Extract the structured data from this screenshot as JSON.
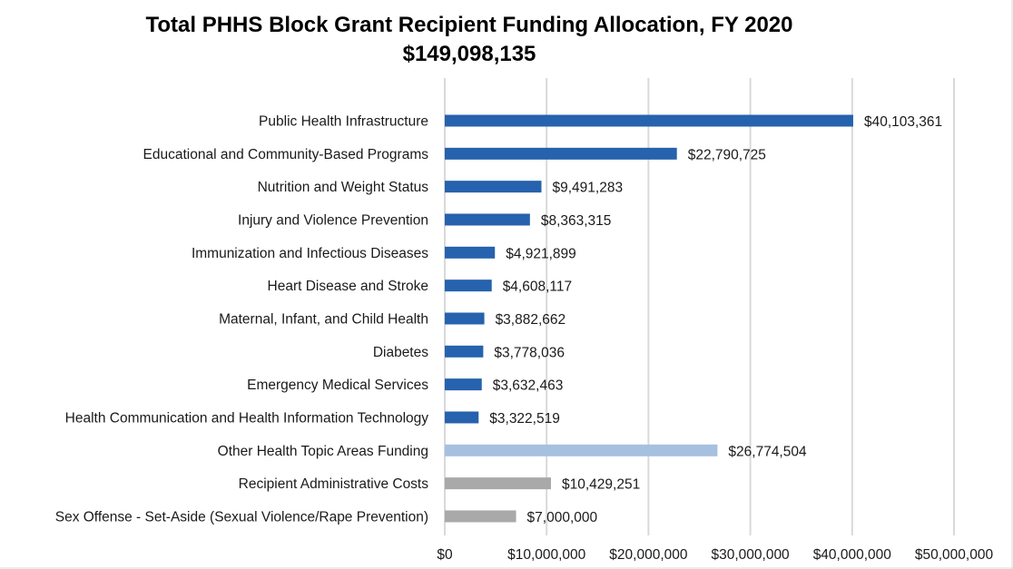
{
  "chart_data": {
    "type": "bar",
    "orientation": "horizontal",
    "title": "Total PHHS Block Grant Recipient Funding Allocation, FY 2020",
    "subtitle": "$149,098,135",
    "xlabel": "",
    "ylabel": "",
    "xlim": [
      0,
      50000000
    ],
    "x_ticks": [
      0,
      10000000,
      20000000,
      30000000,
      40000000,
      50000000
    ],
    "x_tick_labels": [
      "$0",
      "$10,000,000",
      "$20,000,000",
      "$30,000,000",
      "$40,000,000",
      "$50,000,000"
    ],
    "grid": "vertical",
    "legend": "none",
    "categories": [
      "Public Health Infrastructure",
      "Educational and Community-Based Programs",
      "Nutrition and Weight Status",
      "Injury and Violence Prevention",
      "Immunization and Infectious Diseases",
      "Heart Disease and Stroke",
      "Maternal, Infant, and Child Health",
      "Diabetes",
      "Emergency Medical Services",
      "Health Communication and Health Information Technology",
      "Other Health Topic Areas Funding",
      "Recipient Administrative Costs",
      "Sex Offense - Set-Aside (Sexual Violence/Rape Prevention)"
    ],
    "values": [
      40103361,
      22790725,
      9491283,
      8363315,
      4921899,
      4608117,
      3882662,
      3778036,
      3632463,
      3322519,
      26774504,
      10429251,
      7000000
    ],
    "data_labels": [
      "$40,103,361",
      "$22,790,725",
      "$9,491,283",
      "$8,363,315",
      "$4,921,899",
      "$4,608,117",
      "$3,882,662",
      "$3,778,036",
      "$3,632,463",
      "$3,322,519",
      "$26,774,504",
      "$10,429,251",
      "$7,000,000"
    ],
    "bar_colors": [
      "#2662ad",
      "#2662ad",
      "#2662ad",
      "#2662ad",
      "#2662ad",
      "#2662ad",
      "#2662ad",
      "#2662ad",
      "#2662ad",
      "#2662ad",
      "#a6c0e0",
      "#a9a9a9",
      "#a9a9a9"
    ]
  }
}
